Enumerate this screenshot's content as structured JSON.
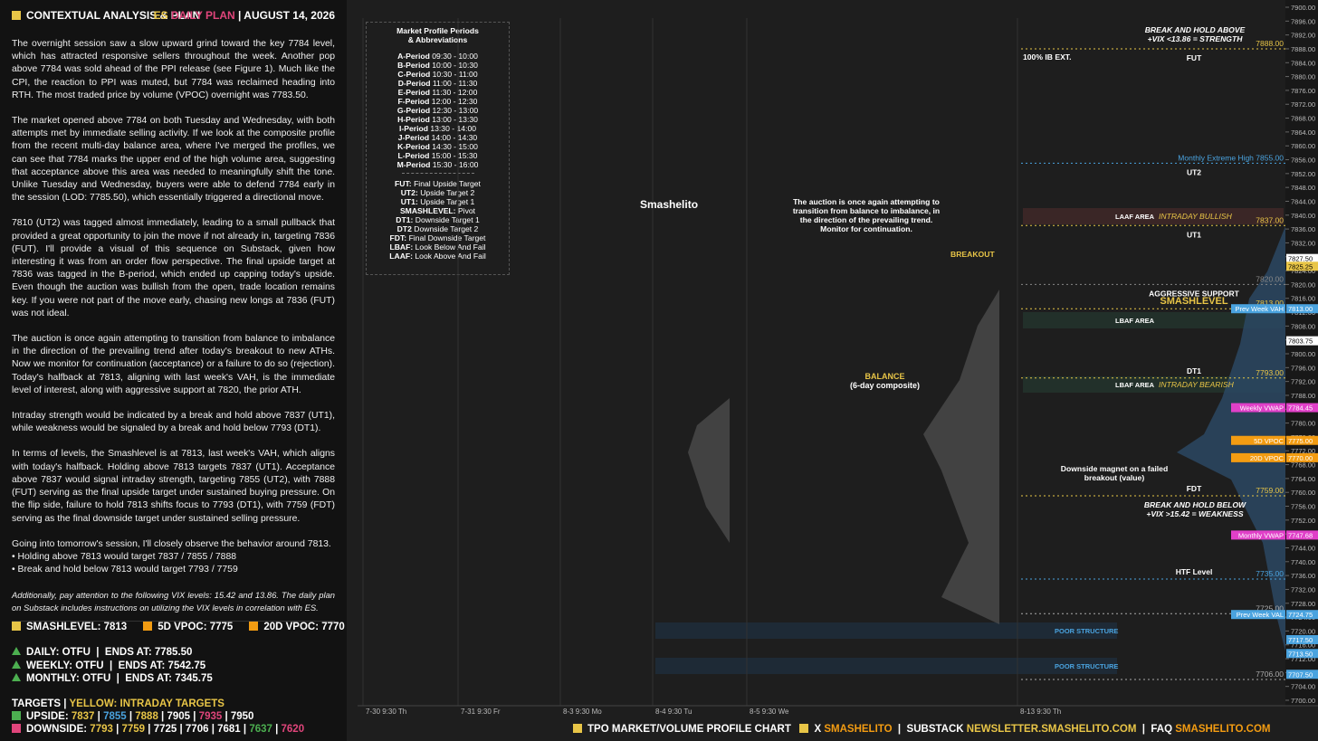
{
  "header": {
    "title": "CONTEXTUAL ANALYSIS & PLAN",
    "plan_prefix": "ES",
    "plan_name": "DAILY PLAN",
    "date": "AUGUST 14, 2026"
  },
  "paragraphs": [
    "The overnight session saw a slow upward grind toward the key 7784 level, which has attracted responsive sellers throughout the week. Another pop above 7784 was sold ahead of the PPI release (see Figure 1). Much like the CPI, the reaction to PPI was muted, but 7784 was reclaimed heading into RTH. The most traded price by volume (VPOC) overnight was 7783.50.",
    "The market opened above 7784 on both Tuesday and Wednesday, with both attempts met by immediate selling activity. If we look at the composite profile from the recent multi-day balance area, where I've merged the profiles, we can see that 7784 marks the upper end of the high volume area, suggesting that acceptance above this area was needed to meaningfully shift the tone. Unlike Tuesday and Wednesday, buyers were able to defend 7784 early in the session (LOD: 7785.50), which essentially triggered a directional move.",
    "7810 (UT2) was tagged almost immediately, leading to a small pullback that provided a great opportunity to join the move if not already in, targeting 7836 (FUT). I'll provide a visual of this sequence on Substack, given how interesting it was from an order flow perspective. The final upside target at 7836 was tagged in the B-period, which ended up capping today's upside. Even though the auction was bullish from the open, trade location remains key. If you were not part of the move early, chasing new longs at 7836 (FUT) was not ideal.",
    "The auction is once again attempting to transition from balance to imbalance in the direction of the prevailing trend after today's breakout to new ATHs. Now we monitor for continuation (acceptance) or a failure to do so (rejection). Today's halfback at 7813, aligning with last week's VAH, is the immediate level of interest, along with aggressive support at 7820, the prior ATH.",
    "Intraday strength would be indicated by a break and hold above 7837 (UT1), while weakness would be signaled by a break and hold below 7793 (DT1).",
    "In terms of levels, the Smashlevel is at 7813, last week's VAH, which aligns with today's halfback. Holding above 7813 targets 7837 (UT1). Acceptance above 7837 would signal intraday strength, targeting 7855 (UT2), with 7888 (FUT) serving as the final upside target under sustained buying pressure. On the flip side, failure to hold 7813 shifts focus to 7793 (DT1), with 7759 (FDT) serving as the final downside target under sustained selling pressure.",
    "Going into tomorrow's session, I'll closely observe the behavior around 7813.\n• Holding above 7813 would target 7837 / 7855 / 7888\n• Break and hold below 7813 would target 7793 / 7759",
    "Additionally, pay attention to the following VIX levels: 15.42 and 13.86. The daily plan on Substack includes instructions on utilizing the VIX levels in correlation with ES."
  ],
  "key_levels": [
    {
      "text": "SMASHLEVEL: 7813",
      "color": "#e8c547"
    },
    {
      "text": "5D VPOC: 7775",
      "color": "#f39c12"
    },
    {
      "text": "20D VPOC: 7770",
      "color": "#f39c12"
    }
  ],
  "status": [
    "DAILY: OTFU  |  ENDS AT: 7785.50",
    "WEEKLY: OTFU  |  ENDS AT: 7542.75",
    "MONTHLY: OTFU  |  ENDS AT: 7345.75"
  ],
  "targets": {
    "title": "TARGETS",
    "title_note": "YELLOW: INTRADAY TARGETS",
    "upside": {
      "label": "UPSIDE:",
      "items": [
        {
          "text": "7837",
          "color": "#e8c547"
        },
        {
          "text": "7855",
          "color": "#4aa3df"
        },
        {
          "text": "7888",
          "color": "#e8c547"
        },
        {
          "text": "7905",
          "color": "#ffffff"
        },
        {
          "text": "7935",
          "color": "#e0457b"
        },
        {
          "text": "7950",
          "color": "#ffffff"
        }
      ]
    },
    "downside": {
      "label": "DOWNSIDE:",
      "items": [
        {
          "text": "7793",
          "color": "#e8c547"
        },
        {
          "text": "7759",
          "color": "#e8c547"
        },
        {
          "text": "7725",
          "color": "#ffffff"
        },
        {
          "text": "7706",
          "color": "#ffffff"
        },
        {
          "text": "7681",
          "color": "#ffffff"
        },
        {
          "text": "7637",
          "color": "#4caf50"
        },
        {
          "text": "7620",
          "color": "#e0457b"
        }
      ]
    }
  },
  "periods_box": {
    "title": "Market Profile Periods",
    "subtitle": "& Abbreviations",
    "periods": [
      {
        "key": "A-Period",
        "text": "09:30 - 10:00"
      },
      {
        "key": "B-Period",
        "text": "10:00 - 10:30"
      },
      {
        "key": "C-Period",
        "text": "10:30 - 11:00"
      },
      {
        "key": "D-Period",
        "text": "11:00 - 11:30"
      },
      {
        "key": "E-Period",
        "text": "11:30 - 12:00"
      },
      {
        "key": "F-Period",
        "text": "12:00 - 12:30"
      },
      {
        "key": "G-Period",
        "text": "12:30 - 13:00"
      },
      {
        "key": "H-Period",
        "text": "13:00 - 13:30"
      },
      {
        "key": "I-Period",
        "text": "13:30 - 14:00"
      },
      {
        "key": "J-Period",
        "text": "14:00 - 14:30"
      },
      {
        "key": "K-Period",
        "text": "14:30 - 15:00"
      },
      {
        "key": "L-Period",
        "text": "15:00 - 15:30"
      },
      {
        "key": "M-Period",
        "text": "15:30 - 16:00"
      }
    ],
    "abbreviations": [
      {
        "key": "FUT:",
        "text": "Final Upside Target"
      },
      {
        "key": "UT2:",
        "text": "Upside Target 2"
      },
      {
        "key": "UT1:",
        "text": "Upside Target 1"
      },
      {
        "key": "SMASHLEVEL:",
        "text": "Pivot"
      },
      {
        "key": "DT1:",
        "text": "Downside Target 1"
      },
      {
        "key": "DT2",
        "text": "Downside Target 2"
      },
      {
        "key": "FDT:",
        "text": "Final Downside Target"
      },
      {
        "key": "LBAF:",
        "text": "Look Below And Fail"
      },
      {
        "key": "LAAF:",
        "text": "Look Above And Fail"
      }
    ]
  },
  "annotations": {
    "brand": "Smashelito",
    "auction": "The auction is once again attempting to transition from balance to imbalance, in the direction of the prevailing trend. Monitor for continuation.",
    "breakout": "BREAKOUT",
    "balance": "BALANCE",
    "balance_note": "(6-day composite)",
    "magnet": "Downside magnet on a failed breakout (value)",
    "above_title": "BREAK AND HOLD ABOVE",
    "above_note": "+VIX <13.86 = STRENGTH",
    "below_title": "BREAK AND HOLD BELOW",
    "below_note": "+VIX >15.42 = WEAKNESS",
    "ib_ext": "100% IB EXT.",
    "poor_structure": [
      "POOR STRUCTURE",
      "POOR STRUCTURE"
    ],
    "laaf": "LAAF AREA",
    "lbaf": [
      "LBAF AREA",
      "LBAF AREA"
    ],
    "laaf_intraday": "INTRADAY BULLISH",
    "lbaf_intraday": "INTRADAY BEARISH"
  },
  "chart_data": {
    "type": "level-chart",
    "pivot": 7813,
    "ylim": [
      7700,
      7900
    ],
    "yticks": [
      {
        "value": 7900,
        "label": "7900.00"
      },
      {
        "value": 7896,
        "label": "7896.00"
      },
      {
        "value": 7892,
        "label": "7892.00"
      },
      {
        "value": 7888,
        "label": "7888.00"
      },
      {
        "value": 7884,
        "label": "7884.00"
      },
      {
        "value": 7880,
        "label": "7880.00"
      },
      {
        "value": 7876,
        "label": "7876.00"
      },
      {
        "value": 7872,
        "label": "7872.00"
      },
      {
        "value": 7868,
        "label": "7868.00"
      },
      {
        "value": 7864,
        "label": "7864.00"
      },
      {
        "value": 7860,
        "label": "7860.00"
      },
      {
        "value": 7856,
        "label": "7856.00"
      },
      {
        "value": 7852,
        "label": "7852.00"
      },
      {
        "value": 7848,
        "label": "7848.00"
      },
      {
        "value": 7844,
        "label": "7844.00"
      },
      {
        "value": 7840,
        "label": "7840.00"
      },
      {
        "value": 7836,
        "label": "7836.00"
      },
      {
        "value": 7832,
        "label": "7832.00"
      },
      {
        "value": 7828,
        "label": "7828.00"
      },
      {
        "value": 7824,
        "label": "7824.00"
      },
      {
        "value": 7820,
        "label": "7820.00"
      },
      {
        "value": 7816,
        "label": "7816.00"
      },
      {
        "value": 7812,
        "label": "7812.00"
      },
      {
        "value": 7808,
        "label": "7808.00"
      },
      {
        "value": 7804,
        "label": "7804.00"
      },
      {
        "value": 7800,
        "label": "7800.00"
      },
      {
        "value": 7796,
        "label": "7796.00"
      },
      {
        "value": 7792,
        "label": "7792.00"
      },
      {
        "value": 7788,
        "label": "7788.00"
      },
      {
        "value": 7784,
        "label": "7784.00"
      },
      {
        "value": 7780,
        "label": "7780.00"
      },
      {
        "value": 7776,
        "label": "7776.00"
      },
      {
        "value": 7772,
        "label": "7772.00"
      },
      {
        "value": 7768,
        "label": "7768.00"
      },
      {
        "value": 7764,
        "label": "7764.00"
      },
      {
        "value": 7760,
        "label": "7760.00"
      },
      {
        "value": 7756,
        "label": "7756.00"
      },
      {
        "value": 7752,
        "label": "7752.00"
      },
      {
        "value": 7748,
        "label": "7748.00"
      },
      {
        "value": 7744,
        "label": "7744.00"
      },
      {
        "value": 7740,
        "label": "7740.00"
      },
      {
        "value": 7736,
        "label": "7736.00"
      },
      {
        "value": 7732,
        "label": "7732.00"
      },
      {
        "value": 7728,
        "label": "7728.00"
      },
      {
        "value": 7724,
        "label": "7724.00"
      },
      {
        "value": 7720,
        "label": "7720.00"
      },
      {
        "value": 7716,
        "label": "7716.00"
      },
      {
        "value": 7712,
        "label": "7712.00"
      },
      {
        "value": 7708,
        "label": "7708.00"
      },
      {
        "value": 7704,
        "label": "7704.00"
      },
      {
        "value": 7700,
        "label": "7700.00"
      }
    ],
    "levels": [
      {
        "name": "FUT",
        "price": 7888,
        "label": "7888.00",
        "color": "#e8c547"
      },
      {
        "name": "UT2",
        "price": 7855,
        "label": "Monthly Extreme High 7855.00",
        "color": "#4aa3df"
      },
      {
        "name": "UT1",
        "price": 7837,
        "label": "7837.00",
        "color": "#e8c547"
      },
      {
        "name": "AGGRESSIVE SUPPORT",
        "price": 7820,
        "label": "7820.00",
        "color": "#888888"
      },
      {
        "name": "SMASHLEVEL",
        "price": 7813,
        "label": "7813.00",
        "color": "#e8c547"
      },
      {
        "name": "DT1",
        "price": 7793,
        "label": "7793.00",
        "color": "#e8c547"
      },
      {
        "name": "FDT",
        "price": 7759,
        "label": "7759.00",
        "color": "#e8c547"
      },
      {
        "name": "HTF Level",
        "price": 7735,
        "label": "7735.00",
        "color": "#4aa3df"
      },
      {
        "price": 7725,
        "label": "7725.00",
        "color": "#aaaaaa"
      },
      {
        "price": 7706,
        "label": "7706.00",
        "color": "#aaaaaa"
      }
    ],
    "axis_tags": [
      {
        "price": 7827.5,
        "label": "7827.50",
        "color": "#ffffff",
        "name": null
      },
      {
        "price": 7825.25,
        "label": "7825.25",
        "color": "#e8c547",
        "name": null
      },
      {
        "price": 7813,
        "label": "7813.00",
        "color": "#4aa3df",
        "name": "Prev Week VAH"
      },
      {
        "price": 7803.75,
        "label": "7803.75",
        "color": "#ffffff",
        "name": null
      },
      {
        "price": 7784.45,
        "label": "7784.45",
        "color": "#e040c8",
        "name": "Weekly VWAP"
      },
      {
        "price": 7775,
        "label": "7775.00",
        "color": "#f39c12",
        "name": "5D VPOC"
      },
      {
        "price": 7770,
        "label": "7770.00",
        "color": "#f39c12",
        "name": "20D VPOC"
      },
      {
        "price": 7747.68,
        "label": "7747.68",
        "color": "#e040c8",
        "name": "Monthly VWAP"
      },
      {
        "price": 7724.75,
        "label": "7724.75",
        "color": "#4aa3df",
        "name": "Prev Week VAL"
      },
      {
        "price": 7717.5,
        "label": "7717.50",
        "color": "#4aa3df",
        "name": null
      },
      {
        "price": 7713.5,
        "label": "7713.50",
        "color": "#4aa3df",
        "name": null
      },
      {
        "price": 7707.5,
        "label": "7707.50",
        "color": "#4aa3df",
        "name": null
      }
    ],
    "sessions": [
      "7-30  9:30 Th",
      "7-31  9:30 Fr",
      "8-3  9:30 Mo",
      "8-4  9:30 Tu",
      "8-5  9:30 We",
      "8-13  9:30 Th"
    ]
  },
  "footer": {
    "chart": "TPO MARKET/VOLUME PROFILE CHART",
    "x": "X",
    "x_handle": "SMASHELITO",
    "substack": "SUBSTACK",
    "substack_url": "NEWSLETTER.SMASHELITO.COM",
    "faq": "FAQ",
    "faq_url": "SMASHELITO.COM"
  }
}
